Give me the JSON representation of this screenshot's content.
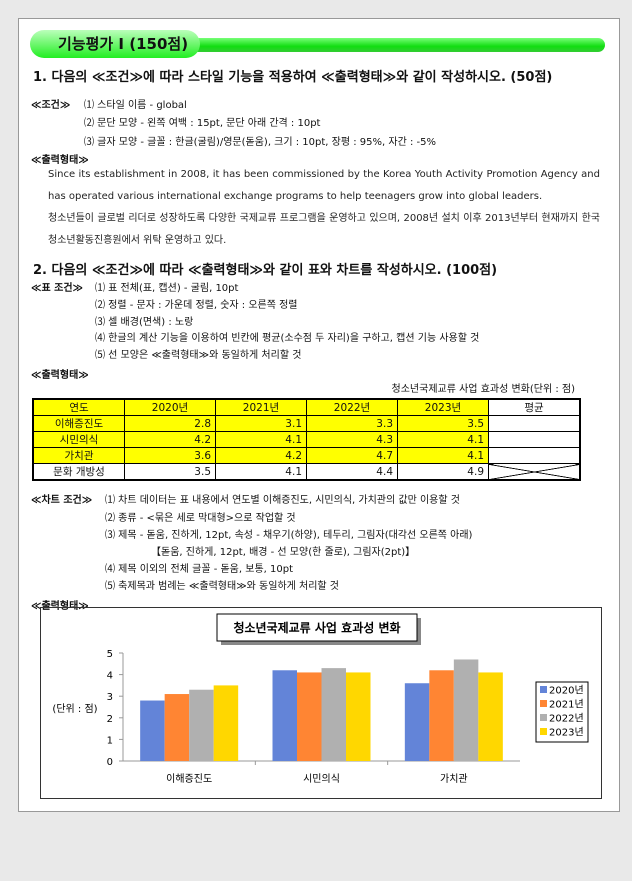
{
  "banner": "기능평가 Ⅰ (150점)",
  "q1": {
    "title": "1. 다음의 ≪조건≫에 따라 스타일 기능을 적용하여 ≪출력형태≫와 같이 작성하시오. (50점)",
    "cond_label": "≪조건≫",
    "conds": [
      "⑴ 스타일 이름 - global",
      "⑵ 문단 모양 - 왼쪽 여백 : 15pt, 문단 아래 간격 : 10pt",
      "⑶ 글자 모양 - 글꼴 : 한글(굴림)/영문(돋움), 크기 : 10pt, 장평 : 95%, 자간 : -5%"
    ],
    "out_label": "≪출력형태≫",
    "en_text": "Since its establishment in 2008, it has been commissioned by the Korea Youth Activity Promotion Agency and has operated various international exchange programs to help teenagers grow into global leaders.",
    "ko_text": "청소년들이 글로벌 리더로 성장하도록 다양한 국제교류 프로그램을 운영하고 있으며, 2008년 설치 이후 2013년부터 현재까지 한국청소년활동진흥원에서 위탁 운영하고 있다."
  },
  "q2": {
    "title": "2. 다음의 ≪조건≫에 따라 ≪출력형태≫와 같이 표와 차트를 작성하시오. (100점)",
    "table_cond_label": "≪표 조건≫",
    "table_conds": [
      "⑴ 표 전체(표, 캡션) - 굴림, 10pt",
      "⑵ 정렬 - 문자 : 가운데 정렬, 숫자 : 오른쪽 정렬",
      "⑶ 셀 배경(면색) : 노랑",
      "⑷ 한글의 계산 기능을 이용하여 빈칸에 평균(소수점 두 자리)을 구하고, 캡션 기능 사용할 것",
      "⑸ 선 모양은 ≪출력형태≫와 동일하게 처리할 것"
    ],
    "out_label": "≪출력형태≫",
    "caption": "청소년국제교류 사업 효과성 변화(단위 : 점)",
    "table": {
      "header": [
        "연도",
        "2020년",
        "2021년",
        "2022년",
        "2023년",
        "평균"
      ],
      "rows": [
        [
          "이해증진도",
          "2.8",
          "3.1",
          "3.3",
          "3.5",
          ""
        ],
        [
          "시민의식",
          "4.2",
          "4.1",
          "4.3",
          "4.1",
          ""
        ],
        [
          "가치관",
          "3.6",
          "4.2",
          "4.7",
          "4.1",
          ""
        ],
        [
          "문화 개방성",
          "3.5",
          "4.1",
          "4.4",
          "4.9",
          ""
        ]
      ]
    },
    "chart_cond_label": "≪차트 조건≫",
    "chart_conds": [
      "⑴ 차트 데이터는 표 내용에서 연도별 이해증진도, 시민의식, 가치관의 값만 이용할 것",
      "⑵ 종류 - <묶은 세로 막대형>으로 작업할 것",
      "⑶ 제목 - 돋움, 진하게, 12pt, 속성 - 채우기(하양), 테두리, 그림자(대각선 오른쪽 아래)",
      "【돋움, 진하게, 12pt, 배경 - 선 모양(한 줄로), 그림자(2pt)】",
      "⑷ 제목 이외의 전체 글꼴 - 돋움, 보통, 10pt",
      "⑸ 축제목과 범례는 ≪출력형태≫와 동일하게 처리할 것"
    ],
    "out_label2": "≪출력형태≫"
  },
  "chart_data": {
    "type": "bar",
    "title": "청소년국제교류 사업 효과성 변화",
    "ylabel": "(단위 : 점)",
    "categories": [
      "이해증진도",
      "시민의식",
      "가치관"
    ],
    "series": [
      {
        "name": "2020년",
        "values": [
          2.8,
          4.2,
          3.6
        ],
        "color": "#6384d8"
      },
      {
        "name": "2021년",
        "values": [
          3.1,
          4.1,
          4.2
        ],
        "color": "#ff8533"
      },
      {
        "name": "2022년",
        "values": [
          3.3,
          4.3,
          4.7
        ],
        "color": "#b0b0b0"
      },
      {
        "name": "2023년",
        "values": [
          3.5,
          4.1,
          4.1
        ],
        "color": "#ffd700"
      }
    ],
    "ylim": [
      0,
      5
    ],
    "yticks": [
      "0",
      "1",
      "2",
      "3",
      "4",
      "5"
    ],
    "legend": "right",
    "grid": false
  }
}
